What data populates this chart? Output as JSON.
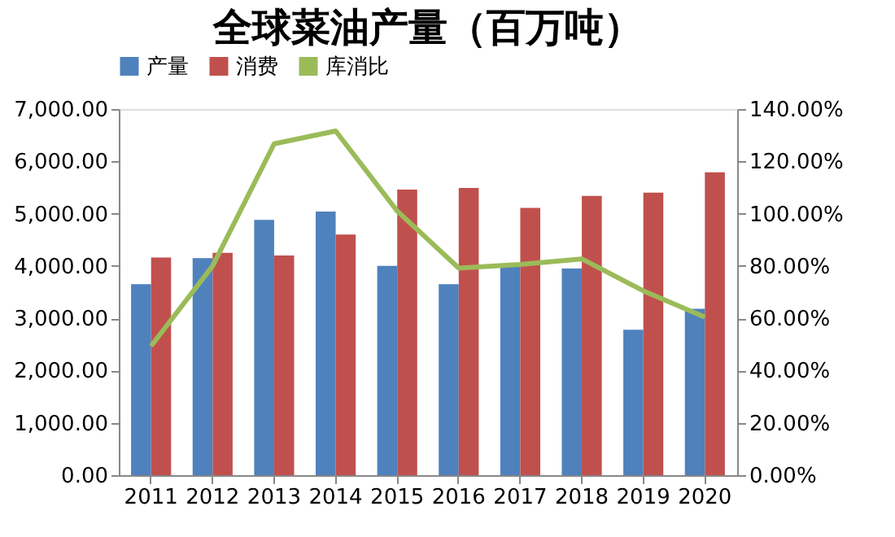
{
  "chart_data": {
    "type": "bar",
    "title": "全球菜油产量（百万吨）",
    "categories": [
      "2011",
      "2012",
      "2013",
      "2014",
      "2015",
      "2016",
      "2017",
      "2018",
      "2019",
      "2020"
    ],
    "series": [
      {
        "name": "产量",
        "color": "#4f81bd",
        "values": [
          3650,
          4150,
          4880,
          5040,
          4000,
          3650,
          4000,
          3950,
          2780,
          3180
        ]
      },
      {
        "name": "消费",
        "color": "#c0504d",
        "values": [
          4160,
          4250,
          4200,
          4600,
          5460,
          5490,
          5110,
          5340,
          5400,
          5790
        ]
      },
      {
        "name": "库消比",
        "type": "line",
        "axis": "y2",
        "color": "#9bbb59",
        "values": [
          49.4,
          80,
          126.7,
          131.6,
          101,
          79.2,
          80.6,
          82.7,
          70.5,
          60.4
        ]
      }
    ],
    "ylim": [
      0,
      7000
    ],
    "yticks": [
      {
        "value": 0,
        "label": "0.00"
      },
      {
        "value": 1000,
        "label": "1,000.00"
      },
      {
        "value": 2000,
        "label": "2,000.00"
      },
      {
        "value": 3000,
        "label": "3,000.00"
      },
      {
        "value": 4000,
        "label": "4,000.00"
      },
      {
        "value": 5000,
        "label": "5,000.00"
      },
      {
        "value": 6000,
        "label": "6,000.00"
      },
      {
        "value": 7000,
        "label": "7,000.00"
      }
    ],
    "y2lim": [
      0,
      140
    ],
    "y2ticks": [
      {
        "value": 0,
        "label": "0.00%"
      },
      {
        "value": 20,
        "label": "20.00%"
      },
      {
        "value": 40,
        "label": "40.00%"
      },
      {
        "value": 60,
        "label": "60.00%"
      },
      {
        "value": 80,
        "label": "80.00%"
      },
      {
        "value": 100,
        "label": "100.00%"
      },
      {
        "value": 120,
        "label": "120.00%"
      },
      {
        "value": 140,
        "label": "140.00%"
      }
    ],
    "legend": "top",
    "grid": false,
    "marker": "none",
    "line_style": "solid"
  }
}
